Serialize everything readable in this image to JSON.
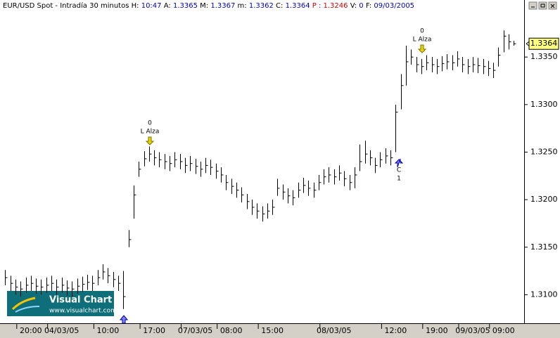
{
  "chart_data": {
    "type": "ohlc",
    "title": "EUR/USD Spot - Intradía 30 minutos",
    "header": [
      {
        "label": "H:",
        "value": "10:47"
      },
      {
        "label": "A:",
        "value": "1.3365"
      },
      {
        "label": "M:",
        "value": "1.3367"
      },
      {
        "label": "m:",
        "value": "1.3362"
      },
      {
        "label": "C:",
        "value": "1.3364"
      },
      {
        "label": "P :",
        "value": "1.3246"
      },
      {
        "label": "V:",
        "value": "0"
      },
      {
        "label": "F:",
        "value": "09/03/2005"
      }
    ],
    "logo": {
      "name": "Visual Chart",
      "url": "www.visualchart.com"
    },
    "last_price": {
      "value": 1.3364,
      "label": "1.3364"
    },
    "annotations": [
      {
        "texts": [
          "0",
          "L Alza"
        ]
      },
      {
        "texts": [
          "0",
          "L Alza"
        ]
      },
      {
        "texts": [
          "C",
          "1"
        ]
      }
    ],
    "color": "#000000",
    "grid": false,
    "ylim": [
      1.307,
      1.341
    ],
    "yticks": [
      {
        "value": 1.31,
        "label": "1.3100"
      },
      {
        "value": 1.315,
        "label": "1.3150"
      },
      {
        "value": 1.32,
        "label": "1.3200"
      },
      {
        "value": 1.325,
        "label": "1.3250"
      },
      {
        "value": 1.33,
        "label": "1.3300"
      },
      {
        "value": 1.335,
        "label": "1.3350"
      }
    ],
    "xlim": [
      -1,
      101
    ],
    "xticks": [
      {
        "value": 5,
        "label": "20:00"
      },
      {
        "value": 11,
        "label": "04/03/05"
      },
      {
        "value": 20,
        "label": "10:00"
      },
      {
        "value": 29,
        "label": "17:00"
      },
      {
        "value": 37,
        "label": "07/03/05"
      },
      {
        "value": 44,
        "label": "08:00"
      },
      {
        "value": 52,
        "label": "15:00"
      },
      {
        "value": 64,
        "label": "08/03/05"
      },
      {
        "value": 76,
        "label": "12:00"
      },
      {
        "value": 84,
        "label": "19:00"
      },
      {
        "value": 91,
        "label": "09/03/05"
      },
      {
        "value": 97,
        "label": "09:00"
      }
    ],
    "high": [
      1.3126,
      1.312,
      1.3116,
      1.3114,
      1.3118,
      1.312,
      1.3117,
      1.3116,
      1.3118,
      1.312,
      1.3116,
      1.3118,
      1.3115,
      1.3114,
      1.3117,
      1.3119,
      1.3121,
      1.312,
      1.3126,
      1.3132,
      1.3128,
      1.3124,
      1.312,
      1.3125,
      1.3168,
      1.3215,
      1.324,
      1.3251,
      1.3256,
      1.3252,
      1.325,
      1.3248,
      1.3246,
      1.325,
      1.3248,
      1.3244,
      1.3246,
      1.3243,
      1.324,
      1.3244,
      1.3242,
      1.3238,
      1.3234,
      1.3226,
      1.3222,
      1.3218,
      1.3213,
      1.3206,
      1.32,
      1.3196,
      1.3193,
      1.3196,
      1.32,
      1.3222,
      1.3216,
      1.3212,
      1.321,
      1.3218,
      1.3223,
      1.322,
      1.3218,
      1.3226,
      1.3232,
      1.3234,
      1.3232,
      1.3236,
      1.323,
      1.3226,
      1.3234,
      1.3258,
      1.3262,
      1.3252,
      1.3244,
      1.325,
      1.3254,
      1.3252,
      1.33,
      1.3332,
      1.3362,
      1.3358,
      1.335,
      1.3348,
      1.3352,
      1.335,
      1.3348,
      1.3351,
      1.3353,
      1.3352,
      1.3356,
      1.335,
      1.3348,
      1.335,
      1.3349,
      1.3348,
      1.3346,
      1.3344,
      1.336,
      1.3378,
      1.3374,
      1.3367
    ],
    "low": [
      1.311,
      1.3104,
      1.31,
      1.3098,
      1.3102,
      1.3104,
      1.3101,
      1.31,
      1.3102,
      1.3104,
      1.31,
      1.3102,
      1.3099,
      1.3098,
      1.3101,
      1.3103,
      1.3105,
      1.3104,
      1.311,
      1.3116,
      1.3112,
      1.3108,
      1.3104,
      1.3085,
      1.315,
      1.318,
      1.3224,
      1.3235,
      1.324,
      1.3236,
      1.3234,
      1.3232,
      1.323,
      1.3234,
      1.3232,
      1.3228,
      1.323,
      1.3227,
      1.3224,
      1.3228,
      1.3226,
      1.3222,
      1.3218,
      1.321,
      1.3206,
      1.3202,
      1.3197,
      1.319,
      1.3184,
      1.318,
      1.3177,
      1.318,
      1.3184,
      1.3204,
      1.32,
      1.3196,
      1.3194,
      1.3202,
      1.3207,
      1.3204,
      1.3202,
      1.321,
      1.3216,
      1.3218,
      1.3216,
      1.322,
      1.3214,
      1.321,
      1.3212,
      1.323,
      1.3238,
      1.3236,
      1.3228,
      1.3234,
      1.3238,
      1.3236,
      1.325,
      1.3295,
      1.332,
      1.3342,
      1.3334,
      1.3332,
      1.3336,
      1.3334,
      1.3332,
      1.3335,
      1.3337,
      1.3336,
      1.334,
      1.3334,
      1.3332,
      1.3334,
      1.3333,
      1.3332,
      1.333,
      1.3328,
      1.334,
      1.3355,
      1.3358,
      1.3362
    ],
    "close": [
      1.3118,
      1.3112,
      1.3108,
      1.3106,
      1.311,
      1.3112,
      1.3109,
      1.3108,
      1.311,
      1.3112,
      1.3108,
      1.311,
      1.3107,
      1.3106,
      1.3109,
      1.3111,
      1.3113,
      1.3112,
      1.3118,
      1.3124,
      1.312,
      1.3116,
      1.3112,
      1.3098,
      1.3158,
      1.3205,
      1.3232,
      1.3243,
      1.3248,
      1.3244,
      1.3242,
      1.324,
      1.3238,
      1.3242,
      1.324,
      1.3236,
      1.3238,
      1.3235,
      1.3232,
      1.3236,
      1.3234,
      1.323,
      1.3226,
      1.3218,
      1.3214,
      1.321,
      1.3205,
      1.3198,
      1.3192,
      1.3188,
      1.3185,
      1.3188,
      1.3192,
      1.3212,
      1.3208,
      1.3204,
      1.3202,
      1.321,
      1.3215,
      1.3212,
      1.321,
      1.3218,
      1.3224,
      1.3226,
      1.3224,
      1.3228,
      1.3222,
      1.3218,
      1.3226,
      1.324,
      1.3248,
      1.3244,
      1.3236,
      1.3242,
      1.3246,
      1.3244,
      1.3292,
      1.332,
      1.3345,
      1.335,
      1.3342,
      1.334,
      1.3344,
      1.3342,
      1.334,
      1.3343,
      1.3345,
      1.3344,
      1.3348,
      1.3342,
      1.334,
      1.3342,
      1.3341,
      1.334,
      1.3338,
      1.3336,
      1.3352,
      1.3372,
      1.3366,
      1.3364
    ]
  }
}
